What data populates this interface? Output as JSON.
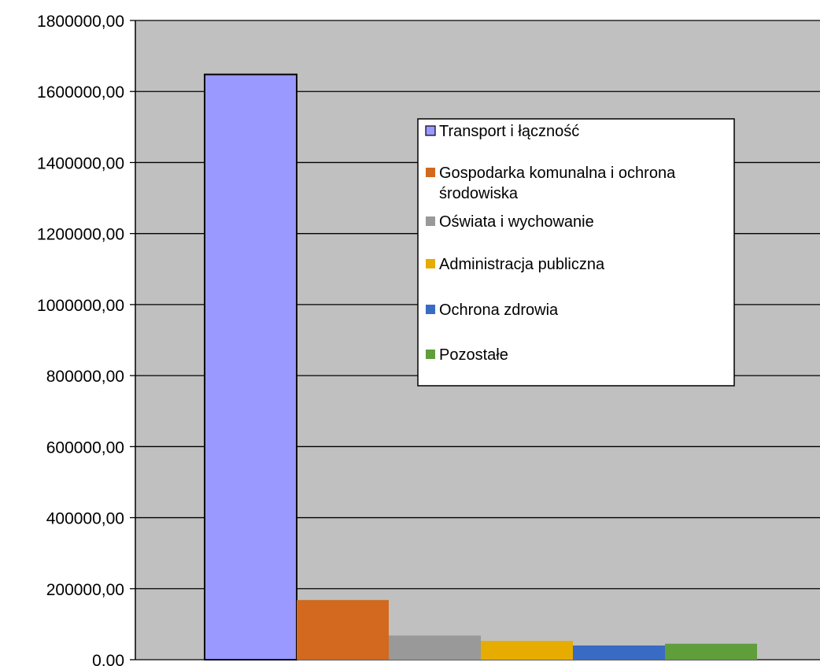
{
  "chart_data": {
    "type": "bar",
    "title": "",
    "xlabel": "",
    "ylabel": "",
    "ylim": [
      0,
      1800000
    ],
    "y_ticks": [
      0,
      200000,
      400000,
      600000,
      800000,
      1000000,
      1200000,
      1400000,
      1600000,
      1800000
    ],
    "y_tick_labels": [
      "0,00",
      "200000,00",
      "400000,00",
      "600000,00",
      "800000,00",
      "1000000,00",
      "1200000,00",
      "1400000,00",
      "1600000,00",
      "1800000,00"
    ],
    "grid": true,
    "legend_position": "upper-right inside plot",
    "plot_background": "#c0c0c0",
    "series": [
      {
        "name": "Transport i łączność",
        "value": 1648000,
        "color": "#9999ff"
      },
      {
        "name": "Gospodarka komunalna i ochrona środowiska",
        "value": 168000,
        "color": "#d2691e"
      },
      {
        "name": "Oświata i wychowanie",
        "value": 68000,
        "color": "#999999"
      },
      {
        "name": "Administracja publiczna",
        "value": 53000,
        "color": "#e6ac00"
      },
      {
        "name": "Ochrona zdrowia",
        "value": 40000,
        "color": "#3a6bc4"
      },
      {
        "name": "Pozostałe",
        "value": 45000,
        "color": "#5f9e3a"
      }
    ],
    "legend_lines": [
      [
        "Transport i łączność"
      ],
      [
        "Gospodarka komunalna i ochrona",
        "środowiska"
      ],
      [
        "Oświata i wychowanie"
      ],
      [
        "Administracja publiczna"
      ],
      [
        "Ochrona zdrowia"
      ],
      [
        "Pozostałe"
      ]
    ]
  }
}
